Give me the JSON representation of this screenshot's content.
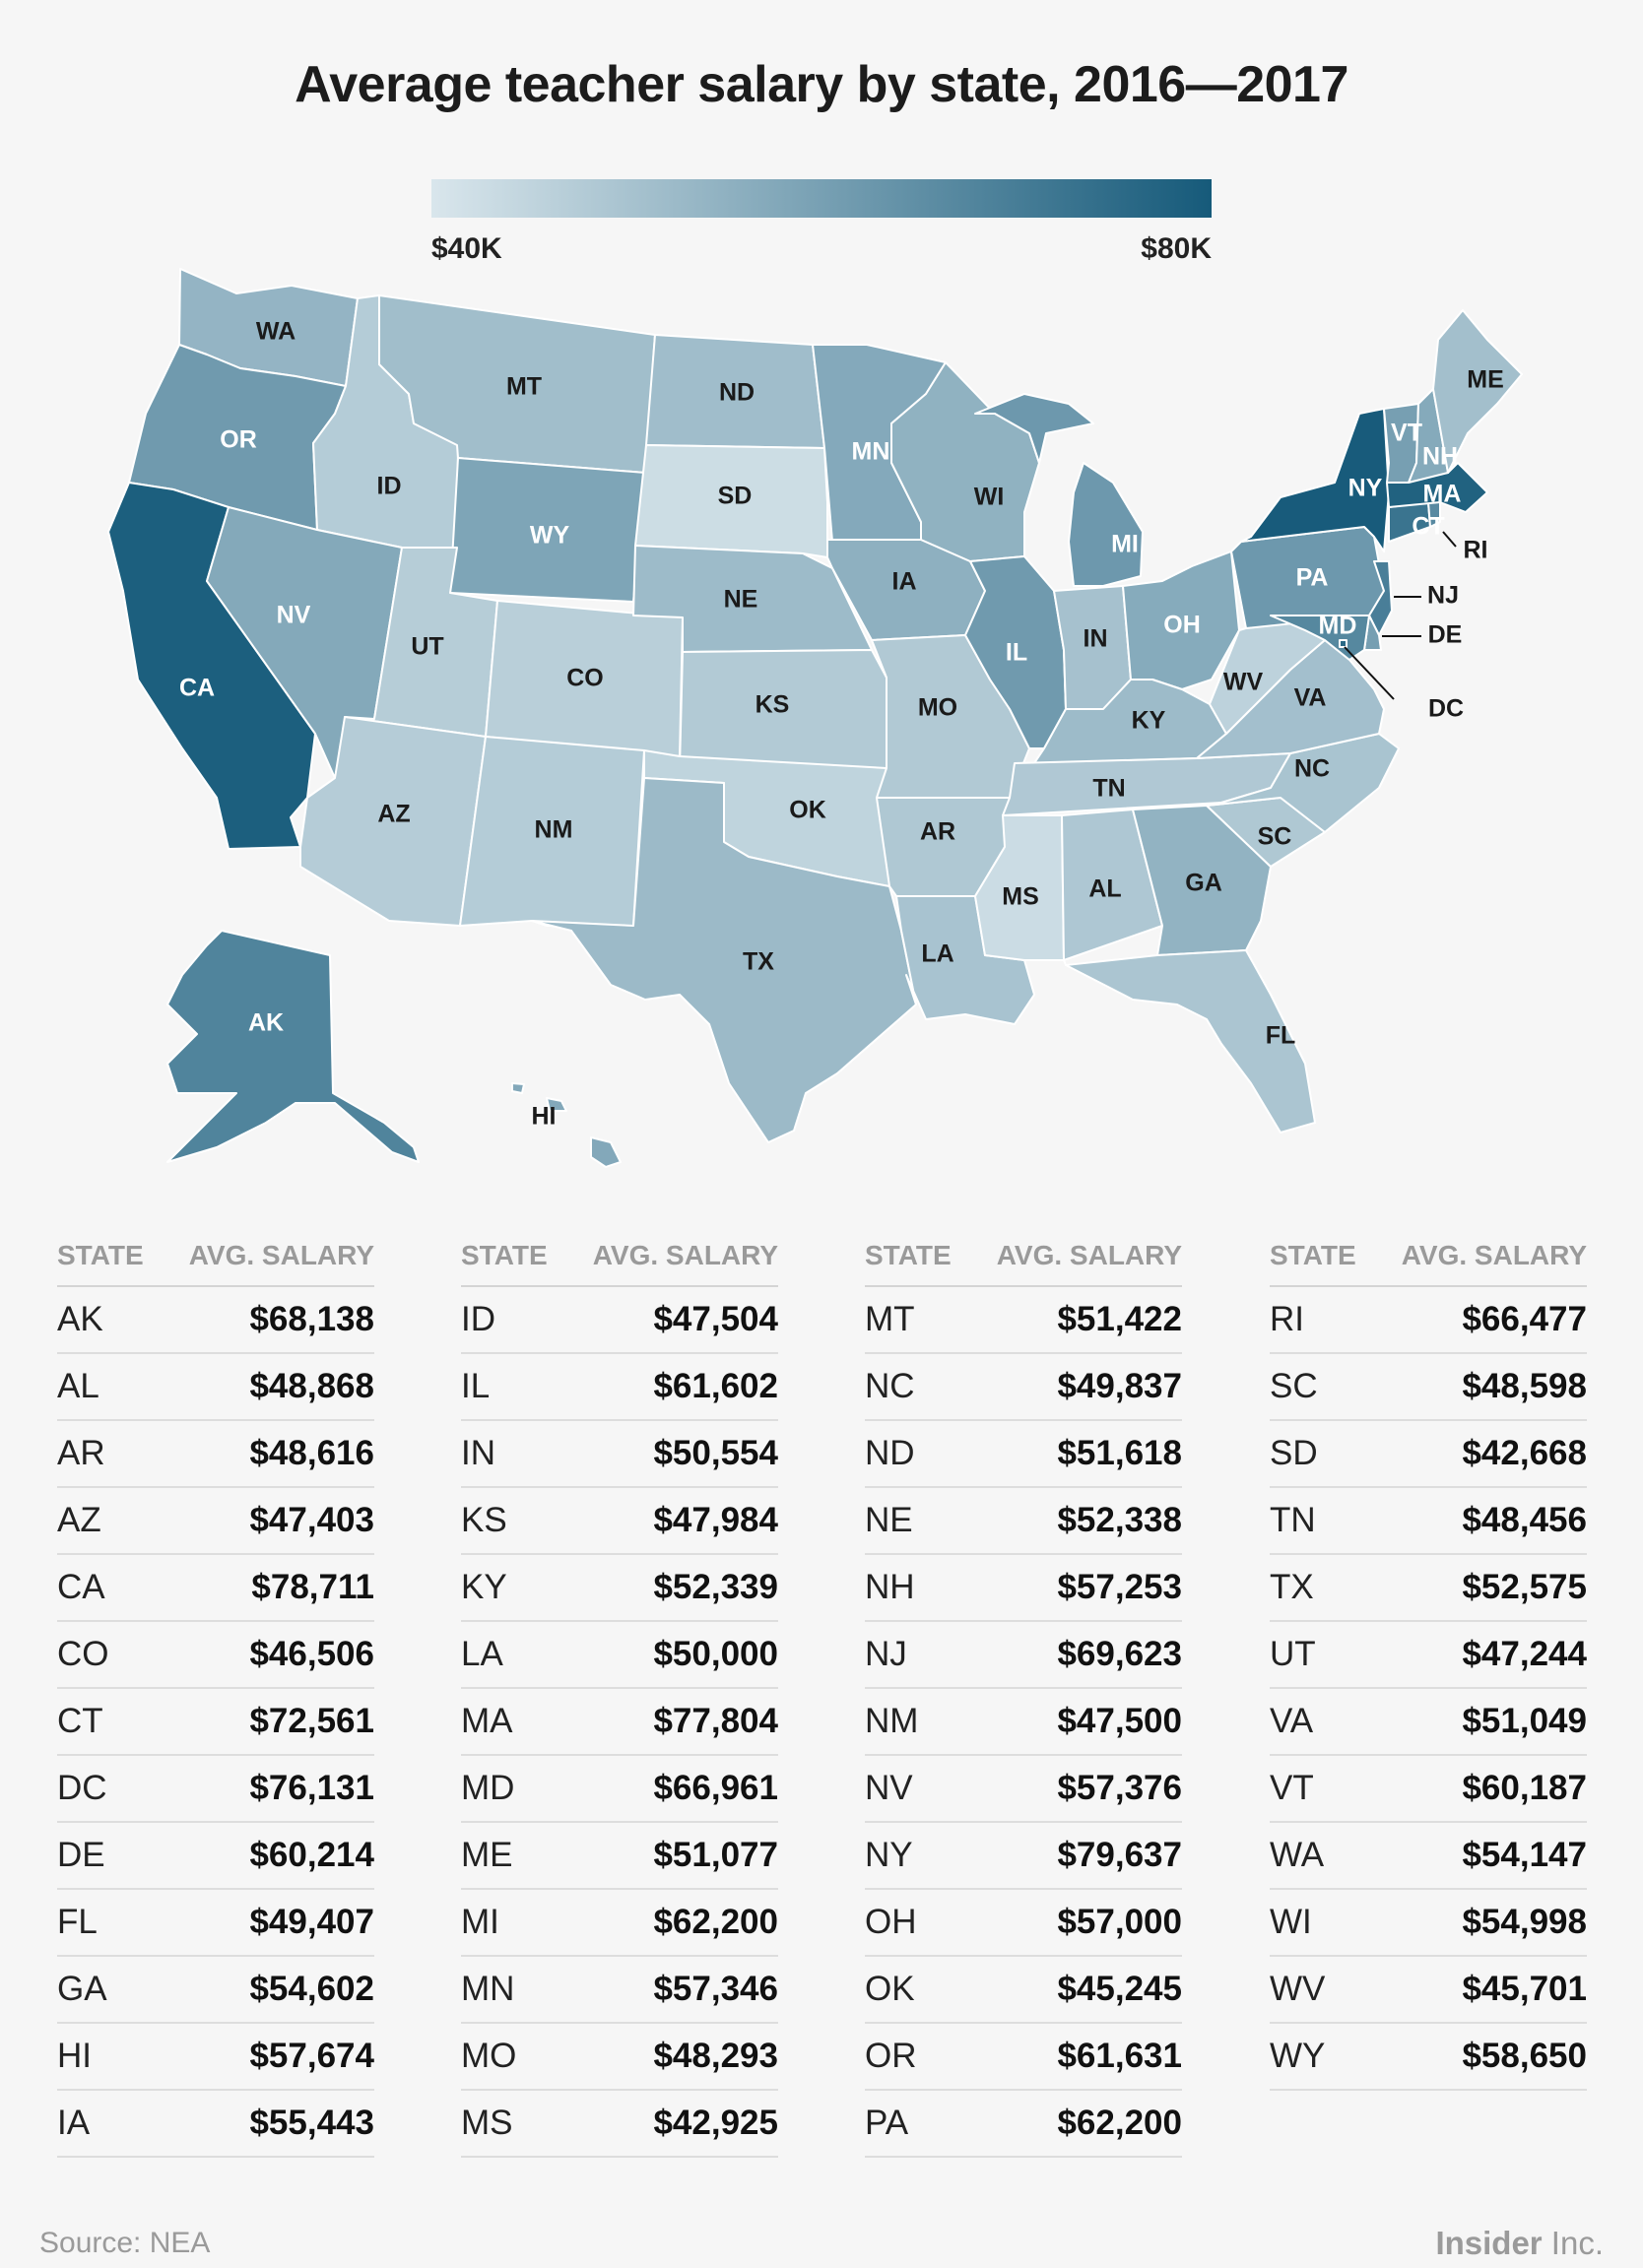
{
  "chart_data": {
    "type": "choropleth-map",
    "title": "Average teacher salary by state, 2016—2017",
    "legend": {
      "min_label": "$40K",
      "max_label": "$80K",
      "min_value": 40000,
      "max_value": 80000,
      "color_low": "#d9e6ec",
      "color_high": "#165a7a"
    },
    "table_header": {
      "state": "STATE",
      "salary": "AVG. SALARY"
    },
    "states": [
      {
        "state": "AK",
        "salary": 68138,
        "label": "$68,138"
      },
      {
        "state": "AL",
        "salary": 48868,
        "label": "$48,868"
      },
      {
        "state": "AR",
        "salary": 48616,
        "label": "$48,616"
      },
      {
        "state": "AZ",
        "salary": 47403,
        "label": "$47,403"
      },
      {
        "state": "CA",
        "salary": 78711,
        "label": "$78,711"
      },
      {
        "state": "CO",
        "salary": 46506,
        "label": "$46,506"
      },
      {
        "state": "CT",
        "salary": 72561,
        "label": "$72,561"
      },
      {
        "state": "DC",
        "salary": 76131,
        "label": "$76,131"
      },
      {
        "state": "DE",
        "salary": 60214,
        "label": "$60,214"
      },
      {
        "state": "FL",
        "salary": 49407,
        "label": "$49,407"
      },
      {
        "state": "GA",
        "salary": 54602,
        "label": "$54,602"
      },
      {
        "state": "HI",
        "salary": 57674,
        "label": "$57,674"
      },
      {
        "state": "IA",
        "salary": 55443,
        "label": "$55,443"
      },
      {
        "state": "ID",
        "salary": 47504,
        "label": "$47,504"
      },
      {
        "state": "IL",
        "salary": 61602,
        "label": "$61,602"
      },
      {
        "state": "IN",
        "salary": 50554,
        "label": "$50,554"
      },
      {
        "state": "KS",
        "salary": 47984,
        "label": "$47,984"
      },
      {
        "state": "KY",
        "salary": 52339,
        "label": "$52,339"
      },
      {
        "state": "LA",
        "salary": 50000,
        "label": "$50,000"
      },
      {
        "state": "MA",
        "salary": 77804,
        "label": "$77,804"
      },
      {
        "state": "MD",
        "salary": 66961,
        "label": "$66,961"
      },
      {
        "state": "ME",
        "salary": 51077,
        "label": "$51,077"
      },
      {
        "state": "MI",
        "salary": 62200,
        "label": "$62,200"
      },
      {
        "state": "MN",
        "salary": 57346,
        "label": "$57,346"
      },
      {
        "state": "MO",
        "salary": 48293,
        "label": "$48,293"
      },
      {
        "state": "MS",
        "salary": 42925,
        "label": "$42,925"
      },
      {
        "state": "MT",
        "salary": 51422,
        "label": "$51,422"
      },
      {
        "state": "NC",
        "salary": 49837,
        "label": "$49,837"
      },
      {
        "state": "ND",
        "salary": 51618,
        "label": "$51,618"
      },
      {
        "state": "NE",
        "salary": 52338,
        "label": "$52,338"
      },
      {
        "state": "NH",
        "salary": 57253,
        "label": "$57,253"
      },
      {
        "state": "NJ",
        "salary": 69623,
        "label": "$69,623"
      },
      {
        "state": "NM",
        "salary": 47500,
        "label": "$47,500"
      },
      {
        "state": "NV",
        "salary": 57376,
        "label": "$57,376"
      },
      {
        "state": "NY",
        "salary": 79637,
        "label": "$79,637"
      },
      {
        "state": "OH",
        "salary": 57000,
        "label": "$57,000"
      },
      {
        "state": "OK",
        "salary": 45245,
        "label": "$45,245"
      },
      {
        "state": "OR",
        "salary": 61631,
        "label": "$61,631"
      },
      {
        "state": "PA",
        "salary": 62200,
        "label": "$62,200"
      },
      {
        "state": "RI",
        "salary": 66477,
        "label": "$66,477"
      },
      {
        "state": "SC",
        "salary": 48598,
        "label": "$48,598"
      },
      {
        "state": "SD",
        "salary": 42668,
        "label": "$42,668"
      },
      {
        "state": "TN",
        "salary": 48456,
        "label": "$48,456"
      },
      {
        "state": "TX",
        "salary": 52575,
        "label": "$52,575"
      },
      {
        "state": "UT",
        "salary": 47244,
        "label": "$47,244"
      },
      {
        "state": "VA",
        "salary": 51049,
        "label": "$51,049"
      },
      {
        "state": "VT",
        "salary": 60187,
        "label": "$60,187"
      },
      {
        "state": "WA",
        "salary": 54147,
        "label": "$54,147"
      },
      {
        "state": "WI",
        "salary": 54998,
        "label": "$54,998"
      },
      {
        "state": "WV",
        "salary": 45701,
        "label": "$45,701"
      },
      {
        "state": "WY",
        "salary": 58650,
        "label": "$58,650"
      }
    ]
  },
  "footer": {
    "source": "Source: NEA",
    "brand_bold": "Insider",
    "brand_light": " Inc."
  }
}
